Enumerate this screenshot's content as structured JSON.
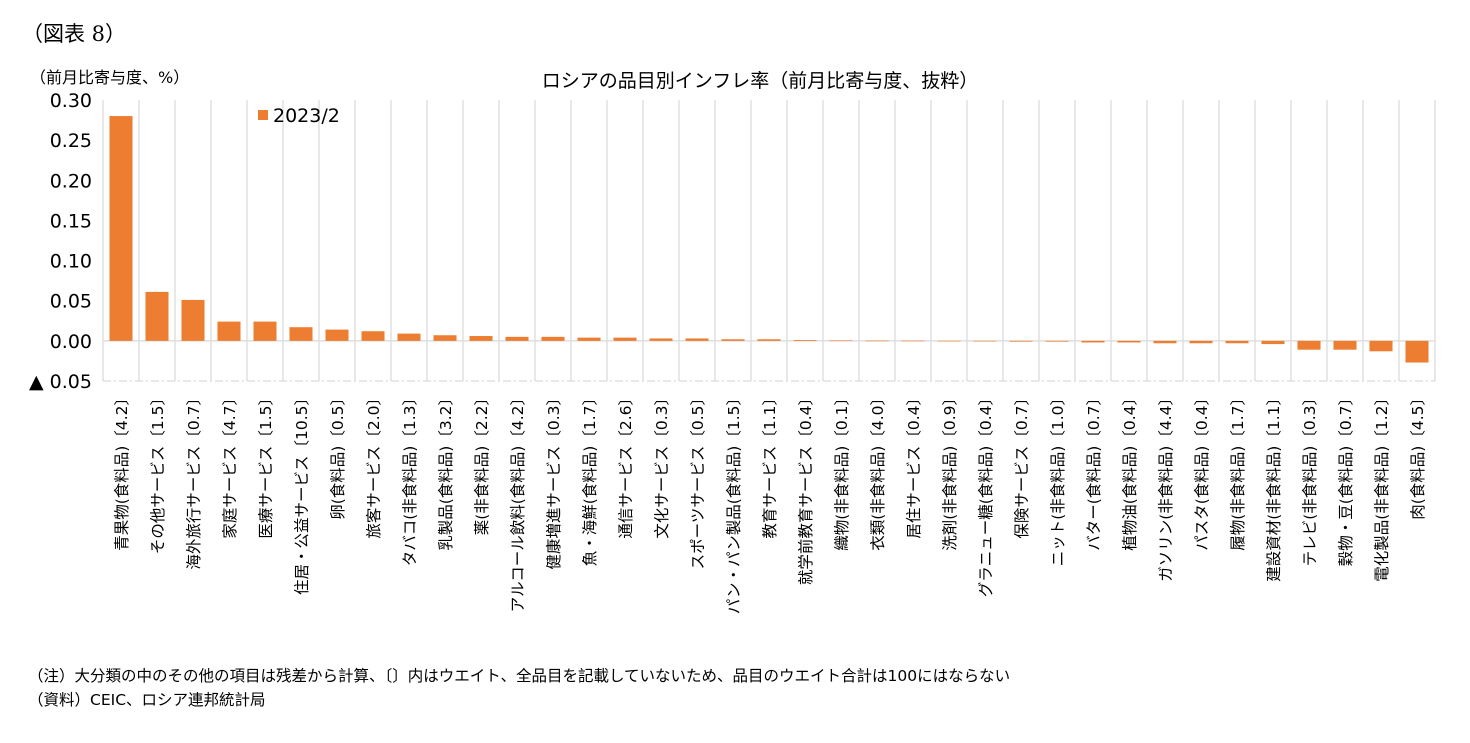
{
  "figure_label": "（図表 8）",
  "chart_data": {
    "type": "bar",
    "title": "ロシアの品目別インフレ率（前月比寄与度、抜粋）",
    "ylabel": "（前月比寄与度、%）",
    "xlabel": "",
    "ylim": [
      -0.05,
      0.3
    ],
    "yticks": [
      0.3,
      0.25,
      0.2,
      0.15,
      0.1,
      0.05,
      0.0,
      -0.05
    ],
    "ytick_labels": [
      "0.30",
      "0.25",
      "0.20",
      "0.15",
      "0.10",
      "0.05",
      "0.00",
      "▲ 0.05"
    ],
    "grid": "vertical",
    "legend_position": "top-left",
    "series": [
      {
        "name": "2023/2",
        "color": "#ED7D31",
        "values": [
          0.28,
          0.061,
          0.051,
          0.024,
          0.024,
          0.017,
          0.014,
          0.012,
          0.009,
          0.007,
          0.006,
          0.005,
          0.005,
          0.004,
          0.004,
          0.003,
          0.003,
          0.002,
          0.002,
          0.001,
          0.0005,
          0.0003,
          0.0002,
          0.0001,
          -0.0005,
          -0.001,
          -0.001,
          -0.002,
          -0.002,
          -0.003,
          -0.003,
          -0.003,
          -0.004,
          -0.011,
          -0.011,
          -0.013,
          -0.027
        ]
      }
    ],
    "categories": [
      "青果物(食料品)〔4.2〕",
      "その他サービス〔1.5〕",
      "海外旅行サービス〔0.7〕",
      "家庭サービス〔4.7〕",
      "医療サービス〔1.5〕",
      "住居・公益サービス〔10.5〕",
      "卵(食料品)〔0.5〕",
      "旅客サービス〔2.0〕",
      "タバコ(非食料品)〔1.3〕",
      "乳製品(食料品)〔3.2〕",
      "薬(非食料品)〔2.2〕",
      "アルコール飲料(食料品)〔4.2〕",
      "健康増進サービス〔0.3〕",
      "魚・海鮮(食料品)〔1.7〕",
      "通信サービス〔2.6〕",
      "文化サービス〔0.3〕",
      "スポーツサービス〔0.5〕",
      "パン・パン製品(食料品)〔1.5〕",
      "教育サービス〔1.1〕",
      "就学前教育サービス〔0.4〕",
      "織物(非食料品)〔0.1〕",
      "衣類(非食料品)〔4.0〕",
      "居住サービス〔0.4〕",
      "洗剤(非食料品)〔0.9〕",
      "グラニュー糖(食料品)〔0.4〕",
      "保険サービス〔0.7〕",
      "ニット(非食料品)〔1.0〕",
      "バター(食料品)〔0.7〕",
      "植物油(食料品)〔0.4〕",
      "ガソリン(非食料品)〔4.4〕",
      "パスタ(食料品)〔0.4〕",
      "履物(非食料品)〔1.7〕",
      "建設資材(非食料品)〔1.1〕",
      "テレビ(非食料品)〔0.3〕",
      "穀物・豆(食料品)〔0.7〕",
      "電化製品(非食料品)〔1.2〕",
      "肉(食料品)〔4.5〕"
    ]
  },
  "notes": [
    "（注）大分類の中のその他の項目は残差から計算、〔〕内はウエイト、全品目を記載していないため、品目のウエイト合計は100にはならない",
    "（資料）CEIC、ロシア連邦統計局"
  ]
}
